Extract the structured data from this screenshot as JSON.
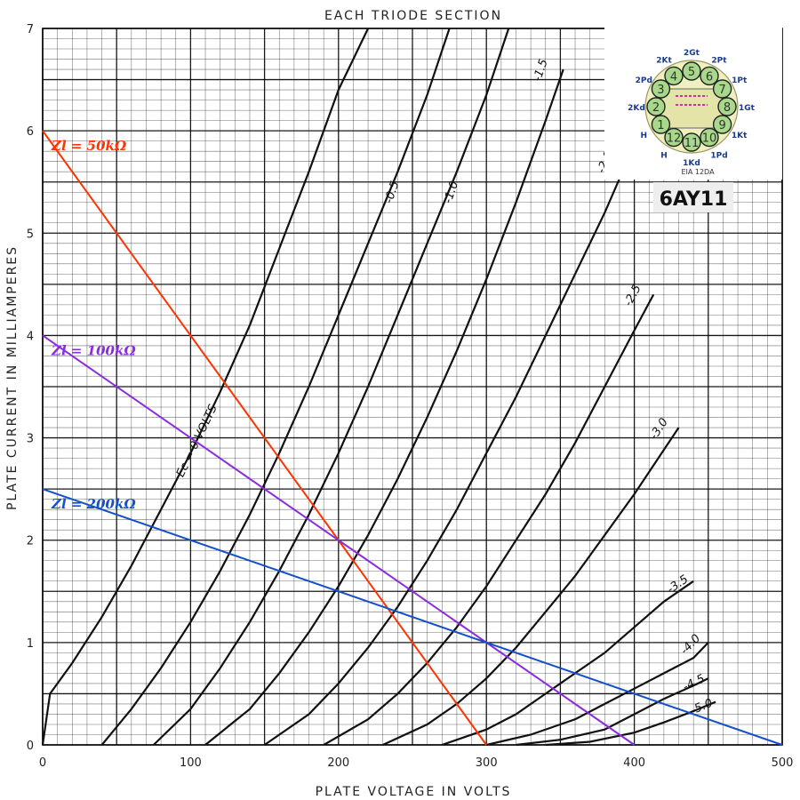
{
  "chart_data": {
    "type": "line",
    "title": "EACH TRIODE SECTION",
    "xlabel": "PLATE VOLTAGE IN VOLTS",
    "ylabel": "PLATE CURRENT IN MILLIAMPERES",
    "xlim": [
      0,
      500
    ],
    "ylim": [
      0,
      7
    ],
    "x_ticks": [
      "0",
      "100",
      "200",
      "300",
      "400",
      "500"
    ],
    "y_ticks": [
      "0",
      "1",
      "2",
      "3",
      "4",
      "5",
      "6",
      "7"
    ],
    "grid": true,
    "colors": {
      "zl50": "#ff3300",
      "zl100": "#8a2be2",
      "zl200": "#1451c8",
      "curve": "#111111",
      "grid": "#000000"
    },
    "series": [
      {
        "name": "Ec = 0 VOLTS",
        "points": [
          [
            0,
            0
          ],
          [
            5,
            0.5
          ],
          [
            20,
            0.8
          ],
          [
            40,
            1.25
          ],
          [
            60,
            1.75
          ],
          [
            80,
            2.3
          ],
          [
            100,
            2.85
          ],
          [
            120,
            3.45
          ],
          [
            140,
            4.1
          ],
          [
            160,
            4.85
          ],
          [
            180,
            5.6
          ],
          [
            200,
            6.4
          ],
          [
            220,
            7
          ]
        ]
      },
      {
        "name": "-0.5",
        "points": [
          [
            40,
            0
          ],
          [
            60,
            0.35
          ],
          [
            80,
            0.75
          ],
          [
            100,
            1.2
          ],
          [
            120,
            1.7
          ],
          [
            140,
            2.25
          ],
          [
            160,
            2.85
          ],
          [
            180,
            3.5
          ],
          [
            200,
            4.2
          ],
          [
            220,
            4.9
          ],
          [
            240,
            5.6
          ],
          [
            260,
            6.35
          ],
          [
            275,
            7
          ]
        ]
      },
      {
        "name": "-1.0",
        "points": [
          [
            75,
            0
          ],
          [
            100,
            0.35
          ],
          [
            120,
            0.75
          ],
          [
            140,
            1.2
          ],
          [
            160,
            1.7
          ],
          [
            180,
            2.25
          ],
          [
            200,
            2.85
          ],
          [
            220,
            3.5
          ],
          [
            240,
            4.2
          ],
          [
            260,
            4.9
          ],
          [
            280,
            5.6
          ],
          [
            300,
            6.35
          ],
          [
            315,
            7
          ]
        ]
      },
      {
        "name": "-1.5",
        "points": [
          [
            110,
            0
          ],
          [
            140,
            0.35
          ],
          [
            160,
            0.7
          ],
          [
            180,
            1.1
          ],
          [
            200,
            1.55
          ],
          [
            220,
            2.05
          ],
          [
            240,
            2.6
          ],
          [
            260,
            3.2
          ],
          [
            280,
            3.85
          ],
          [
            300,
            4.55
          ],
          [
            320,
            5.3
          ],
          [
            340,
            6.1
          ],
          [
            352,
            6.6
          ]
        ]
      },
      {
        "name": "-2.0",
        "points": [
          [
            150,
            0
          ],
          [
            180,
            0.3
          ],
          [
            200,
            0.6
          ],
          [
            220,
            0.95
          ],
          [
            240,
            1.35
          ],
          [
            260,
            1.8
          ],
          [
            280,
            2.3
          ],
          [
            300,
            2.85
          ],
          [
            320,
            3.4
          ],
          [
            340,
            4.0
          ],
          [
            360,
            4.6
          ],
          [
            380,
            5.2
          ],
          [
            395,
            5.7
          ]
        ]
      },
      {
        "name": "-2.5",
        "points": [
          [
            190,
            0
          ],
          [
            220,
            0.25
          ],
          [
            240,
            0.5
          ],
          [
            260,
            0.8
          ],
          [
            280,
            1.15
          ],
          [
            300,
            1.55
          ],
          [
            320,
            2.0
          ],
          [
            340,
            2.45
          ],
          [
            360,
            2.95
          ],
          [
            380,
            3.5
          ],
          [
            400,
            4.05
          ],
          [
            413,
            4.4
          ]
        ]
      },
      {
        "name": "-3.0",
        "points": [
          [
            230,
            0
          ],
          [
            260,
            0.2
          ],
          [
            280,
            0.4
          ],
          [
            300,
            0.65
          ],
          [
            320,
            0.95
          ],
          [
            340,
            1.3
          ],
          [
            360,
            1.65
          ],
          [
            380,
            2.05
          ],
          [
            400,
            2.45
          ],
          [
            430,
            3.1
          ]
        ]
      },
      {
        "name": "-3.5",
        "points": [
          [
            270,
            0
          ],
          [
            300,
            0.15
          ],
          [
            320,
            0.3
          ],
          [
            340,
            0.5
          ],
          [
            360,
            0.7
          ],
          [
            380,
            0.9
          ],
          [
            400,
            1.15
          ],
          [
            420,
            1.4
          ],
          [
            440,
            1.6
          ]
        ]
      },
      {
        "name": "-4.0",
        "points": [
          [
            300,
            0
          ],
          [
            330,
            0.1
          ],
          [
            360,
            0.25
          ],
          [
            380,
            0.4
          ],
          [
            400,
            0.55
          ],
          [
            420,
            0.7
          ],
          [
            440,
            0.85
          ],
          [
            450,
            1.0
          ]
        ]
      },
      {
        "name": "-4.5",
        "points": [
          [
            320,
            0
          ],
          [
            350,
            0.05
          ],
          [
            380,
            0.15
          ],
          [
            400,
            0.3
          ],
          [
            420,
            0.45
          ],
          [
            440,
            0.58
          ],
          [
            450,
            0.65
          ]
        ]
      },
      {
        "name": "-5.0",
        "points": [
          [
            340,
            0
          ],
          [
            370,
            0.03
          ],
          [
            400,
            0.12
          ],
          [
            420,
            0.22
          ],
          [
            440,
            0.33
          ],
          [
            455,
            0.42
          ]
        ]
      }
    ],
    "load_lines": [
      {
        "name": "Zl = 50kΩ",
        "points": [
          [
            0,
            6
          ],
          [
            300,
            0
          ]
        ]
      },
      {
        "name": "Zl = 100kΩ",
        "points": [
          [
            0,
            4
          ],
          [
            400,
            0
          ]
        ]
      },
      {
        "name": "Zl = 200kΩ",
        "points": [
          [
            0,
            2.5
          ],
          [
            500,
            0
          ]
        ]
      }
    ],
    "inset": {
      "tube": "6AY11",
      "base": "EIA 12DA",
      "pins": [
        "1",
        "2",
        "3",
        "4",
        "5",
        "6",
        "7",
        "8",
        "9",
        "10",
        "11",
        "12"
      ],
      "pin_labels": [
        "H",
        "2Kd",
        "2Pd",
        "2Kt",
        "2Gt",
        "2Pt",
        "1Pt",
        "1Gt",
        "1Kt",
        "1Pd",
        "1Kd",
        "H"
      ]
    }
  }
}
